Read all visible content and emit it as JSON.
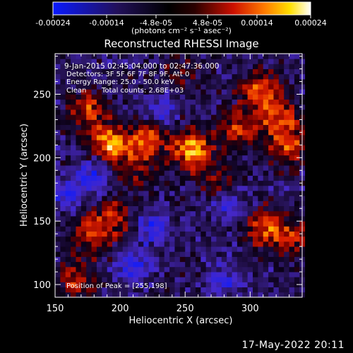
{
  "colorbar": {
    "ticks": [
      "-0.00024",
      "-0.00014",
      "-4.8e-05",
      "4.8e-05",
      "0.00014",
      "0.00024"
    ],
    "units": "(photons cm⁻² s⁻¹ asec⁻²)",
    "colormap": "blue-black-red-yellow-white"
  },
  "chart_data": {
    "type": "heatmap",
    "title": "Reconstructed RHESSI Image",
    "xlabel": "Heliocentric X (arcsec)",
    "ylabel": "Heliocentric Y (arcsec)",
    "xlim": [
      150,
      340
    ],
    "ylim": [
      90,
      282
    ],
    "x_ticks": [
      "150",
      "200",
      "250",
      "300"
    ],
    "y_ticks": [
      "100",
      "150",
      "200",
      "250"
    ],
    "x_tick_values": [
      150,
      200,
      250,
      300
    ],
    "y_tick_values": [
      100,
      150,
      200,
      250
    ],
    "clim": [
      -0.00024,
      0.00024
    ],
    "annotations": {
      "time": "9-Jan-2015 02:45:04.000 to 02:47:36.000",
      "detectors": "Detectors: 3F 5F 6F 7F 8F 9F, Att 0",
      "energy": "Energy Range: 25.0 - 50.0 keV",
      "clean": "Clean",
      "counts": "Total counts: 2.68E+03",
      "peak": "Position of Peak = [255,198]"
    },
    "peak_position": [
      255,
      198
    ],
    "sources": [
      {
        "x": 255,
        "y": 206,
        "peak": 0.00024
      },
      {
        "x": 192,
        "y": 211,
        "peak": 0.00021
      },
      {
        "x": 175,
        "y": 238,
        "peak": 0.00016
      },
      {
        "x": 220,
        "y": 213,
        "peak": 0.00017
      },
      {
        "x": 292,
        "y": 222,
        "peak": 0.00015
      },
      {
        "x": 308,
        "y": 252,
        "peak": 0.00018
      },
      {
        "x": 323,
        "y": 232,
        "peak": 0.00015
      },
      {
        "x": 330,
        "y": 210,
        "peak": 0.00016
      },
      {
        "x": 195,
        "y": 152,
        "peak": 0.00014
      },
      {
        "x": 176,
        "y": 140,
        "peak": 0.00013
      },
      {
        "x": 310,
        "y": 145,
        "peak": 0.00016
      },
      {
        "x": 332,
        "y": 138,
        "peak": 0.00013
      },
      {
        "x": 165,
        "y": 103,
        "peak": 0.00013
      },
      {
        "x": 245,
        "y": 268,
        "peak": 7e-05
      },
      {
        "x": 275,
        "y": 180,
        "peak": 8e-05
      },
      {
        "x": 210,
        "y": 190,
        "peak": 9e-05
      }
    ],
    "negative_regions": [
      {
        "x": 180,
        "y": 186,
        "depth": -0.00014
      },
      {
        "x": 225,
        "y": 145,
        "depth": -0.00013
      },
      {
        "x": 210,
        "y": 115,
        "depth": -0.00012
      },
      {
        "x": 285,
        "y": 162,
        "depth": -0.00011
      },
      {
        "x": 280,
        "y": 105,
        "depth": -0.0001
      },
      {
        "x": 160,
        "y": 170,
        "depth": -0.00011
      },
      {
        "x": 232,
        "y": 240,
        "depth": -9e-05
      }
    ]
  },
  "footer": {
    "timestamp": "17-May-2022 20:11"
  }
}
